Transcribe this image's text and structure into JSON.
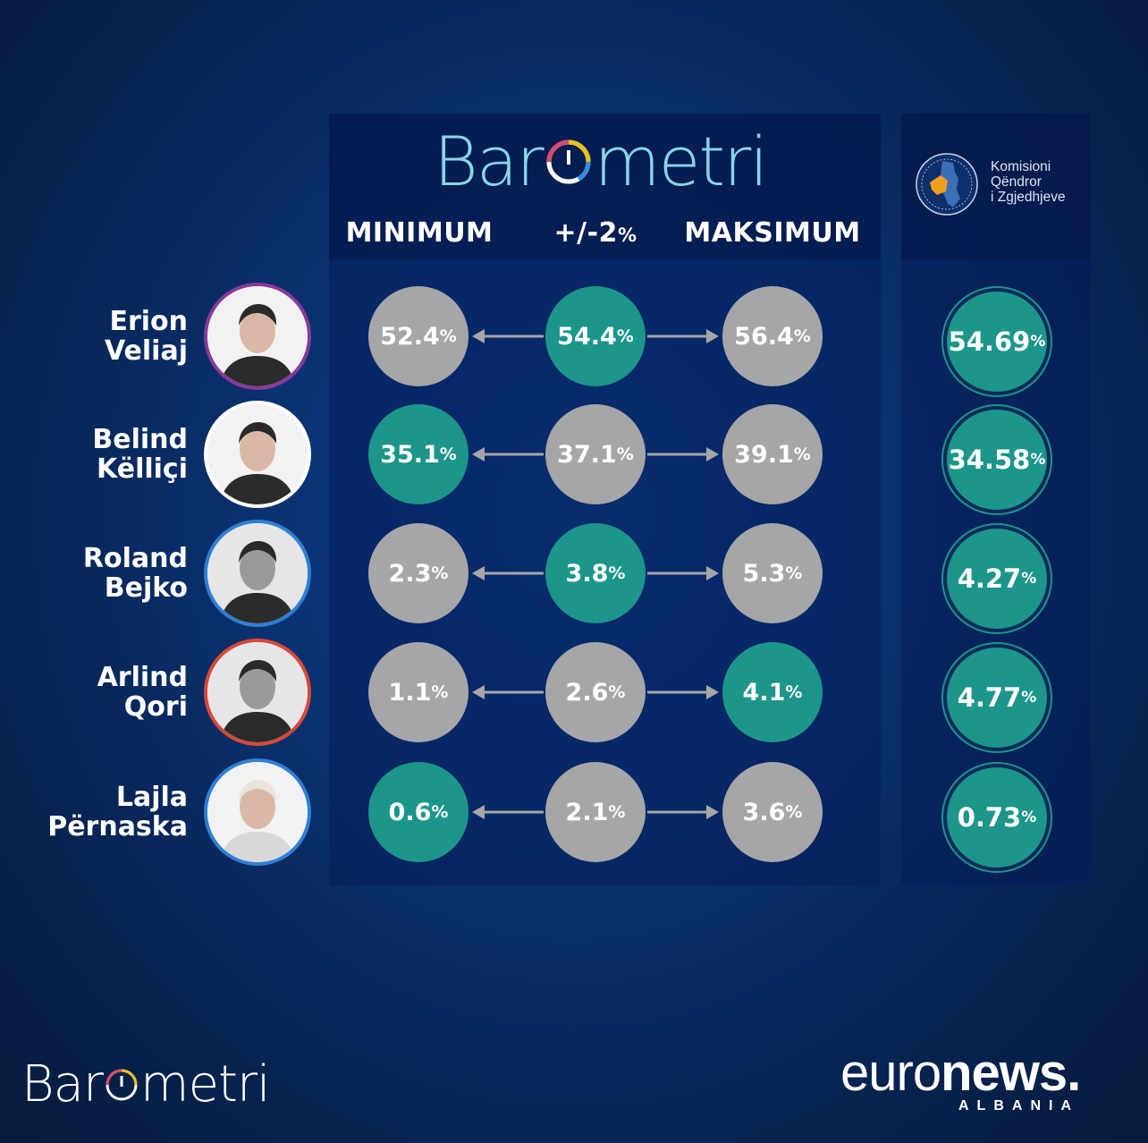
{
  "brand": {
    "logo_text_a": "Bar",
    "logo_text_b": "metri"
  },
  "columns": {
    "min": "MINIMUM",
    "mid_main": "+/-2",
    "mid_pct": "%",
    "max": "MAKSIMUM"
  },
  "cec": {
    "line1": "Komisioni",
    "line2": "Qëndror",
    "line3": "i Zgjedhjeve"
  },
  "pct_sign": "%",
  "chart_data": {
    "type": "table",
    "columns": [
      "MINIMUM",
      "+/-2%",
      "MAKSIMUM",
      "Komisioni Qëndror i Zgjedhjeve"
    ],
    "rows": [
      {
        "first": "Erion",
        "last": "Veliaj",
        "min": "52.4",
        "mid": "54.4",
        "max": "56.4",
        "cec": "54.69",
        "highlight": "mid",
        "ring": "#8a3a9a"
      },
      {
        "first": "Belind",
        "last": "Këlliçi",
        "min": "35.1",
        "mid": "37.1",
        "max": "39.1",
        "cec": "34.58",
        "highlight": "min",
        "ring": "#ffffff"
      },
      {
        "first": "Roland",
        "last": "Bejko",
        "min": "2.3",
        "mid": "3.8",
        "max": "5.3",
        "cec": "4.27",
        "highlight": "mid",
        "ring": "#2f7fd4"
      },
      {
        "first": "Arlind",
        "last": "Qori",
        "min": "1.1",
        "mid": "2.6",
        "max": "4.1",
        "cec": "4.77",
        "highlight": "max",
        "ring": "#d9483a"
      },
      {
        "first": "Lajla",
        "last": "Përnaska",
        "min": "0.6",
        "mid": "2.1",
        "max": "3.6",
        "cec": "0.73",
        "highlight": "min",
        "ring": "#2f7fd4"
      }
    ]
  },
  "footer": {
    "logo_a": "Bar",
    "logo_b": "metri",
    "euro": "euro",
    "news": "news",
    "dot": ".",
    "albania": "ALBANIA"
  }
}
